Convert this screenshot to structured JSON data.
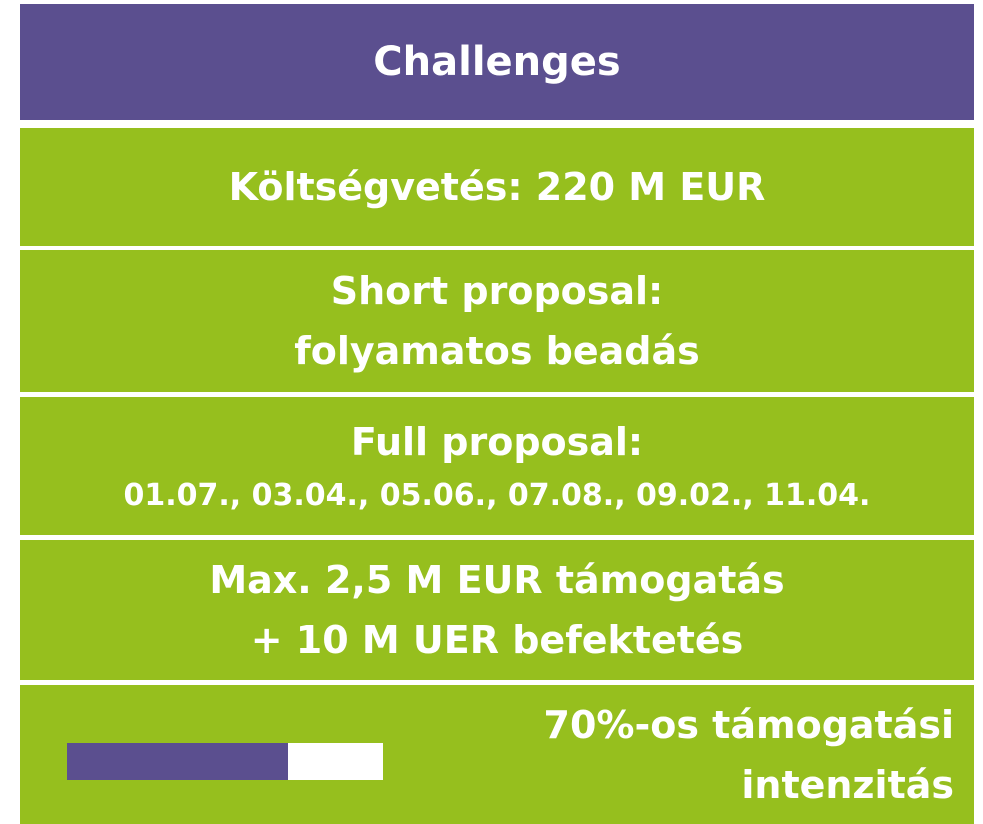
{
  "header": {
    "title": "Challenges"
  },
  "rows": [
    {
      "lines": [
        "Költségvetés: 220 M EUR"
      ]
    },
    {
      "lines": [
        "Short proposal:",
        "folyamatos beadás"
      ]
    },
    {
      "lines": [
        "Full proposal:",
        "01.07., 03.04., 05.06., 07.08., 09.02., 11.04."
      ]
    },
    {
      "lines": [
        "Max. 2,5 M EUR támogatás",
        "+ 10 M UER befektetés"
      ]
    },
    {
      "lines": [
        "70%-os támogatási",
        "intenzitás"
      ],
      "intensity": 70
    }
  ]
}
